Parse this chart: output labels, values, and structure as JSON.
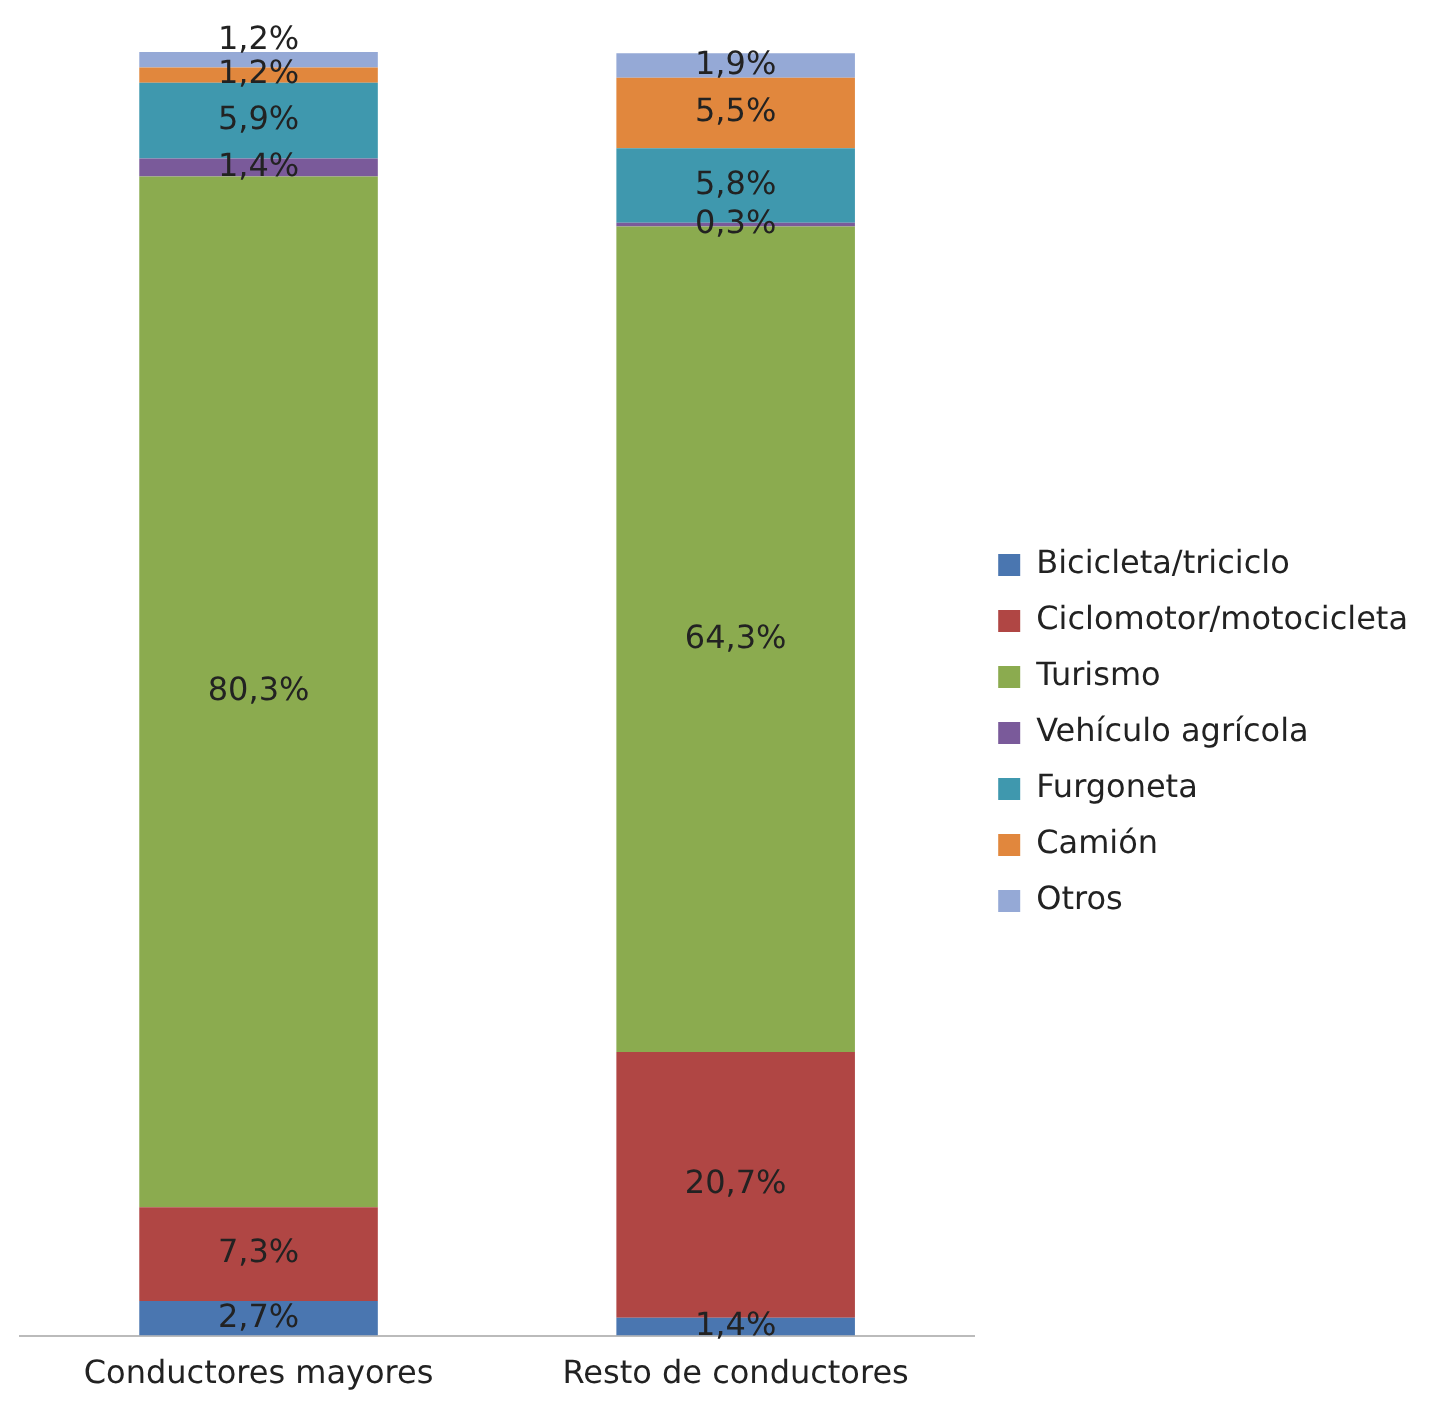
{
  "chart_data": {
    "type": "bar",
    "stacked": true,
    "categories": [
      "Conductores mayores",
      "Resto de conductores"
    ],
    "legend": "right",
    "grid": false,
    "series": [
      {
        "name": "Bicicleta/triciclo",
        "color": "#4a76b0",
        "values": [
          2.7,
          1.4
        ],
        "value_labels": [
          "2,7%",
          "1,4%"
        ]
      },
      {
        "name": "Ciclomotor/motocicleta",
        "color": "#b04644",
        "values": [
          7.3,
          20.7
        ],
        "value_labels": [
          "7,3%",
          "20,7%"
        ]
      },
      {
        "name": "Turismo",
        "color": "#8bab4f",
        "values": [
          80.3,
          64.3
        ],
        "value_labels": [
          "80,3%",
          "64,3%"
        ]
      },
      {
        "name": "Vehículo agrícola",
        "color": "#7a5a9a",
        "values": [
          1.4,
          0.3
        ],
        "value_labels": [
          "1,4%",
          "0,3%"
        ]
      },
      {
        "name": "Furgoneta",
        "color": "#3f98ae",
        "values": [
          5.9,
          5.8
        ],
        "value_labels": [
          "5,9%",
          "5,8%"
        ]
      },
      {
        "name": "Camión",
        "color": "#e1873d",
        "values": [
          1.2,
          5.5
        ],
        "value_labels": [
          "1,2%",
          "5,5%"
        ]
      },
      {
        "name": "Otros",
        "color": "#95a9d6",
        "values": [
          1.2,
          1.9
        ],
        "value_labels": [
          "1,2%",
          "1,9%"
        ]
      }
    ]
  }
}
